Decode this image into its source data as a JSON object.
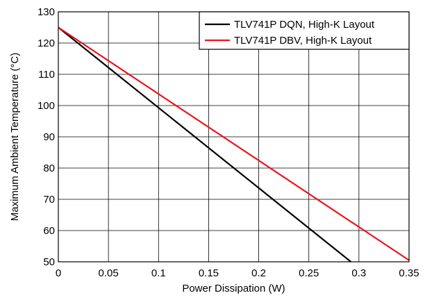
{
  "chart_data": {
    "type": "line",
    "xlabel": "Power Dissipation (W)",
    "ylabel": "Maximum Ambient Temperature (°C)",
    "xlim": [
      0,
      0.35
    ],
    "ylim": [
      50,
      130
    ],
    "x_ticks": [
      0,
      0.05,
      0.1,
      0.15,
      0.2,
      0.25,
      0.3,
      0.35
    ],
    "x_tick_labels": [
      "0",
      "0.05",
      "0.1",
      "0.15",
      "0.2",
      "0.25",
      "0.3",
      "0.35"
    ],
    "y_ticks": [
      50,
      60,
      70,
      80,
      90,
      100,
      110,
      120,
      130
    ],
    "y_tick_labels": [
      "50",
      "60",
      "70",
      "80",
      "90",
      "100",
      "110",
      "120",
      "130"
    ],
    "grid": true,
    "legend_position": "top-right",
    "series": [
      {
        "name": "TLV741P DQN, High-K Layout",
        "color": "#000000",
        "x": [
          0,
          0.292
        ],
        "y": [
          125,
          50
        ]
      },
      {
        "name": "TLV741P DBV, High-K Layout",
        "color": "#e8141b",
        "x": [
          0,
          0.35
        ],
        "y": [
          125,
          50.5
        ]
      }
    ]
  }
}
